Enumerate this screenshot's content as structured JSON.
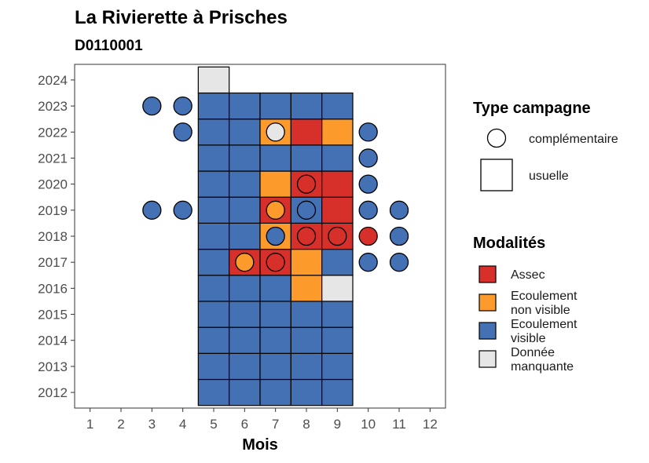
{
  "chart_data": {
    "type": "heatmap",
    "title": "La Rivierette à Prisches",
    "subtitle": "D0110001",
    "xlabel": "Mois",
    "ylabel": "",
    "x_ticks": [
      1,
      2,
      3,
      4,
      5,
      6,
      7,
      8,
      9,
      10,
      11,
      12
    ],
    "y_ticks": [
      2012,
      2013,
      2014,
      2015,
      2016,
      2017,
      2018,
      2019,
      2020,
      2021,
      2022,
      2023,
      2024
    ],
    "xlim": [
      0.5,
      12.5
    ],
    "ylim": [
      2011.4,
      2024.6
    ],
    "colors": {
      "Assec": "#d7302b",
      "Ecoulement non visible": "#fd9a2c",
      "Ecoulement visible": "#4470b4",
      "Donnée manquante": "#e6e6e6"
    },
    "legend_type": {
      "title": "Type campagne",
      "items": [
        {
          "label": "complémentaire",
          "shape": "circle"
        },
        {
          "label": "usuelle",
          "shape": "square"
        }
      ]
    },
    "legend_modalites": {
      "title": "Modalités",
      "items": [
        {
          "key": "Assec",
          "lines": [
            "Assec"
          ]
        },
        {
          "key": "Ecoulement non visible",
          "lines": [
            "Ecoulement",
            "non visible"
          ]
        },
        {
          "key": "Ecoulement visible",
          "lines": [
            "Ecoulement",
            "visible"
          ]
        },
        {
          "key": "Donnée manquante",
          "lines": [
            "Donnée",
            "manquante"
          ]
        }
      ]
    },
    "usuelle": [
      {
        "year": 2012,
        "values": {
          "5": "Ecoulement visible",
          "6": "Ecoulement visible",
          "7": "Ecoulement visible",
          "8": "Ecoulement visible",
          "9": "Ecoulement visible"
        }
      },
      {
        "year": 2013,
        "values": {
          "5": "Ecoulement visible",
          "6": "Ecoulement visible",
          "7": "Ecoulement visible",
          "8": "Ecoulement visible",
          "9": "Ecoulement visible"
        }
      },
      {
        "year": 2014,
        "values": {
          "5": "Ecoulement visible",
          "6": "Ecoulement visible",
          "7": "Ecoulement visible",
          "8": "Ecoulement visible",
          "9": "Ecoulement visible"
        }
      },
      {
        "year": 2015,
        "values": {
          "5": "Ecoulement visible",
          "6": "Ecoulement visible",
          "7": "Ecoulement visible",
          "8": "Ecoulement visible",
          "9": "Ecoulement visible"
        }
      },
      {
        "year": 2016,
        "values": {
          "5": "Ecoulement visible",
          "6": "Ecoulement visible",
          "7": "Ecoulement visible",
          "8": "Ecoulement non visible",
          "9": "Donnée manquante"
        }
      },
      {
        "year": 2017,
        "values": {
          "5": "Ecoulement visible",
          "6": "Assec",
          "7": "Assec",
          "8": "Ecoulement non visible",
          "9": "Ecoulement visible"
        }
      },
      {
        "year": 2018,
        "values": {
          "5": "Ecoulement visible",
          "6": "Ecoulement visible",
          "7": "Ecoulement non visible",
          "8": "Assec",
          "9": "Assec"
        }
      },
      {
        "year": 2019,
        "values": {
          "5": "Ecoulement visible",
          "6": "Ecoulement visible",
          "7": "Assec",
          "8": "Ecoulement visible",
          "9": "Assec"
        }
      },
      {
        "year": 2020,
        "values": {
          "5": "Ecoulement visible",
          "6": "Ecoulement visible",
          "7": "Ecoulement non visible",
          "8": "Assec",
          "9": "Assec"
        }
      },
      {
        "year": 2021,
        "values": {
          "5": "Ecoulement visible",
          "6": "Ecoulement visible",
          "7": "Ecoulement visible",
          "8": "Ecoulement visible",
          "9": "Ecoulement visible"
        }
      },
      {
        "year": 2022,
        "values": {
          "5": "Ecoulement visible",
          "6": "Ecoulement visible",
          "7": "Ecoulement non visible",
          "8": "Assec",
          "9": "Ecoulement non visible"
        }
      },
      {
        "year": 2023,
        "values": {
          "5": "Ecoulement visible",
          "6": "Ecoulement visible",
          "7": "Ecoulement visible",
          "8": "Ecoulement visible",
          "9": "Ecoulement visible"
        }
      },
      {
        "year": 2024,
        "values": {
          "5": "Donnée manquante"
        }
      }
    ],
    "complementaire": [
      {
        "year": 2023,
        "month": 3,
        "value": "Ecoulement visible"
      },
      {
        "year": 2023,
        "month": 4,
        "value": "Ecoulement visible"
      },
      {
        "year": 2022,
        "month": 4,
        "value": "Ecoulement visible"
      },
      {
        "year": 2022,
        "month": 7,
        "value": "Donnée manquante"
      },
      {
        "year": 2022,
        "month": 10,
        "value": "Ecoulement visible"
      },
      {
        "year": 2021,
        "month": 10,
        "value": "Ecoulement visible"
      },
      {
        "year": 2020,
        "month": 8,
        "value": "Assec"
      },
      {
        "year": 2020,
        "month": 10,
        "value": "Ecoulement visible"
      },
      {
        "year": 2019,
        "month": 3,
        "value": "Ecoulement visible"
      },
      {
        "year": 2019,
        "month": 4,
        "value": "Ecoulement visible"
      },
      {
        "year": 2019,
        "month": 7,
        "value": "Ecoulement non visible"
      },
      {
        "year": 2019,
        "month": 8,
        "value": "Ecoulement visible"
      },
      {
        "year": 2019,
        "month": 10,
        "value": "Ecoulement visible"
      },
      {
        "year": 2019,
        "month": 11,
        "value": "Ecoulement visible"
      },
      {
        "year": 2018,
        "month": 7,
        "value": "Ecoulement visible"
      },
      {
        "year": 2018,
        "month": 8,
        "value": "Assec"
      },
      {
        "year": 2018,
        "month": 9,
        "value": "Assec"
      },
      {
        "year": 2018,
        "month": 10,
        "value": "Assec"
      },
      {
        "year": 2018,
        "month": 11,
        "value": "Ecoulement visible"
      },
      {
        "year": 2017,
        "month": 6,
        "value": "Ecoulement non visible"
      },
      {
        "year": 2017,
        "month": 7,
        "value": "Assec"
      },
      {
        "year": 2017,
        "month": 10,
        "value": "Ecoulement visible"
      },
      {
        "year": 2017,
        "month": 11,
        "value": "Ecoulement visible"
      }
    ]
  }
}
